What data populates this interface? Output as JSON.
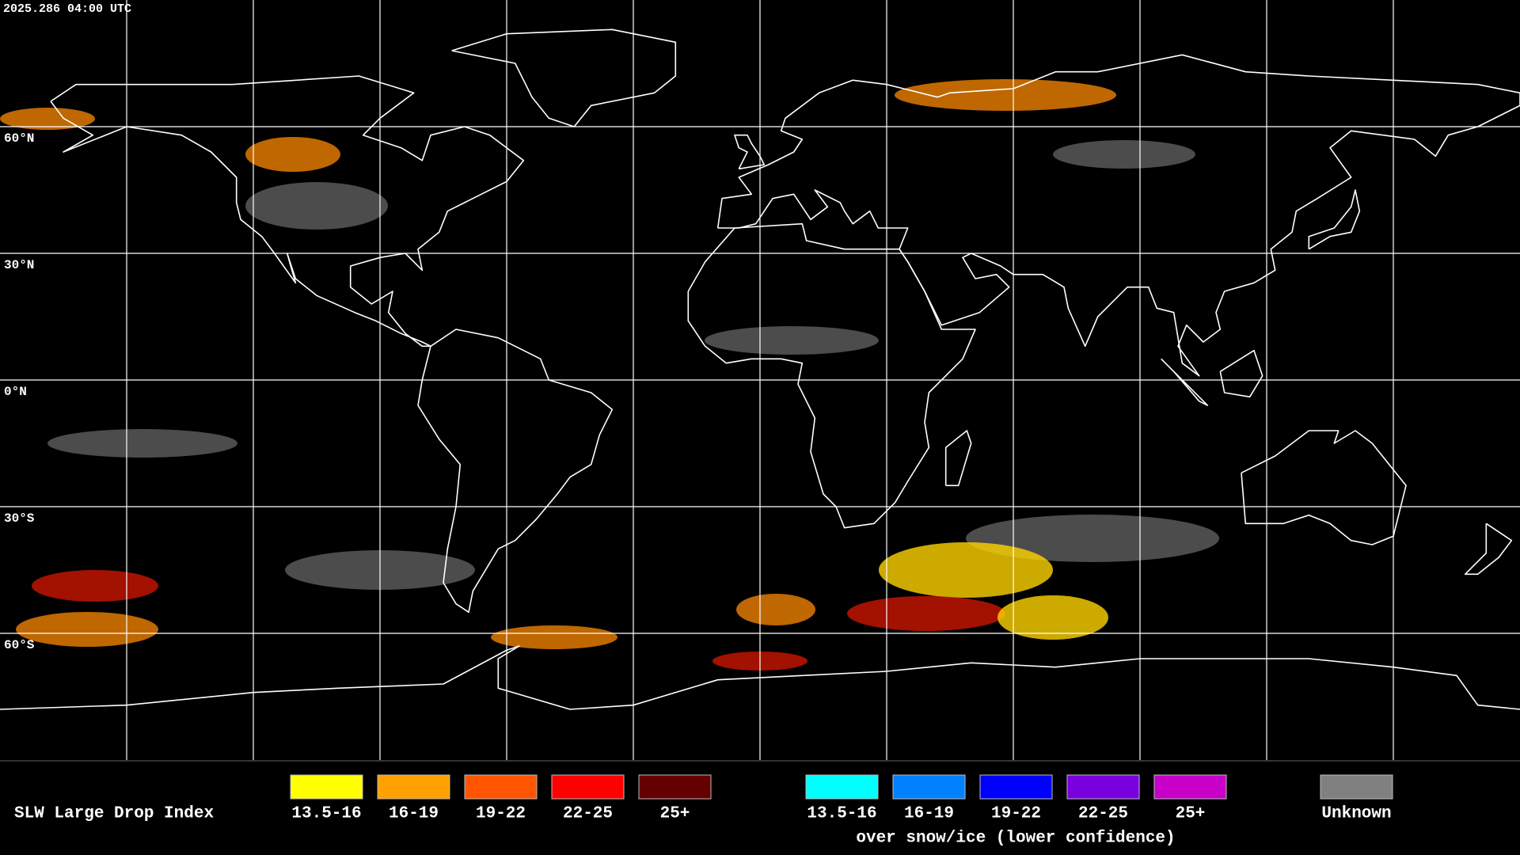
{
  "timestamp": "2025.286 04:00 UTC",
  "latitude_labels": [
    "60°N",
    "30°N",
    "0°N",
    "30°S",
    "60°S"
  ],
  "legend": {
    "title": "SLW Large Drop Index",
    "groups": [
      {
        "items": [
          {
            "label": "13.5-16",
            "color": "#ffff00"
          },
          {
            "label": "16-19",
            "color": "#ff9f00"
          },
          {
            "label": "19-22",
            "color": "#ff5500"
          },
          {
            "label": "22-25",
            "color": "#ff0000"
          },
          {
            "label": "25+",
            "color": "#640000"
          }
        ]
      },
      {
        "items": [
          {
            "label": "13.5-16",
            "color": "#00ffff"
          },
          {
            "label": "16-19",
            "color": "#0080ff"
          },
          {
            "label": "19-22",
            "color": "#0000ff"
          },
          {
            "label": "22-25",
            "color": "#7a00e0"
          },
          {
            "label": "25+",
            "color": "#c800c8"
          }
        ],
        "caption": "over snow/ice (lower confidence)"
      },
      {
        "items": [
          {
            "label": "Unknown",
            "color": "#808080"
          }
        ]
      }
    ]
  }
}
